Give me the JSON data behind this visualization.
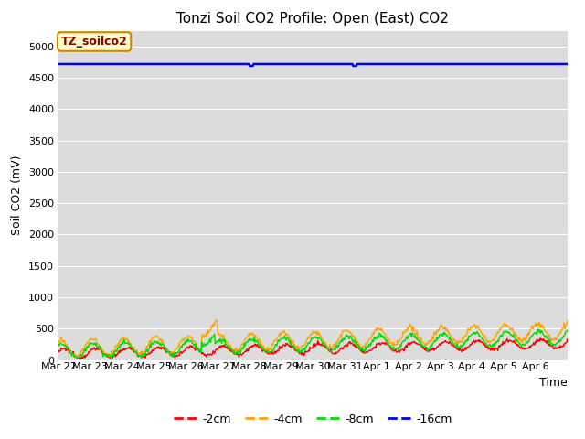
{
  "title": "Tonzi Soil CO2 Profile: Open (East) CO2",
  "xlabel": "Time",
  "ylabel": "Soil CO2 (mV)",
  "tag_label": "TZ_soilco2",
  "ylim": [
    0,
    5250
  ],
  "yticks": [
    0,
    500,
    1000,
    1500,
    2000,
    2500,
    3000,
    3500,
    4000,
    4500,
    5000
  ],
  "series": [
    {
      "label": "-2cm",
      "color": "#ff0000",
      "linewidth": 1.0
    },
    {
      "label": "-4cm",
      "color": "#ffa500",
      "linewidth": 1.0
    },
    {
      "label": "-8cm",
      "color": "#00dd00",
      "linewidth": 1.0
    },
    {
      "label": "-16cm",
      "color": "#0000ff",
      "linewidth": 1.8
    }
  ],
  "background_color": "#dcdcdc",
  "fig_background": "#ffffff",
  "title_fontsize": 11,
  "axis_label_fontsize": 9,
  "tick_fontsize": 8,
  "blue_line_value": 4720,
  "blue_dip1_index": 96,
  "blue_dip2_index": 148,
  "blue_dip_amount": 30
}
